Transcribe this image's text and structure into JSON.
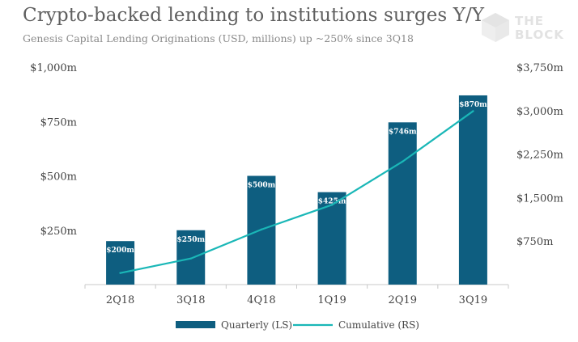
{
  "header": {
    "title": "Crypto-backed lending to institutions surges Y/Y",
    "subtitle": "Genesis Capital Lending Originations (USD, millions) up ~250% since 3Q18"
  },
  "logo": {
    "line1": "THE",
    "line2": "BLOCK",
    "icon": "cube-logo-icon"
  },
  "colors": {
    "bar": "#0e5e80",
    "line": "#1ab7b7",
    "axis": "#c8c8c8"
  },
  "chart_data": {
    "type": "bar",
    "title": "Crypto-backed lending to institutions surges Y/Y",
    "subtitle": "Genesis Capital Lending Originations (USD, millions) up ~250% since 3Q18",
    "categories": [
      "2Q18",
      "3Q18",
      "4Q18",
      "1Q19",
      "2Q19",
      "3Q19"
    ],
    "series": [
      {
        "name": "Quarterly (LS)",
        "type": "bar",
        "axis": "left",
        "values": [
          200,
          250,
          500,
          425,
          746,
          870
        ],
        "labels": [
          "$200m",
          "$250m",
          "$500m",
          "$425m",
          "$746m",
          "$870m"
        ]
      },
      {
        "name": "Cumulative (RS)",
        "type": "line",
        "axis": "right",
        "values": [
          200,
          450,
          950,
          1375,
          2121,
          2991
        ]
      }
    ],
    "left_axis": {
      "ylim": [
        0,
        1000
      ],
      "ticks": [
        250,
        500,
        750,
        1000
      ],
      "tick_labels": [
        "$250m",
        "$500m",
        "$750m",
        "$1,000m"
      ]
    },
    "right_axis": {
      "ylim": [
        0,
        3750
      ],
      "ticks": [
        750,
        1500,
        2250,
        3000,
        3750
      ],
      "tick_labels": [
        "$750m",
        "$1,500m",
        "$2,250m",
        "$3,000m",
        "$3,750m"
      ]
    },
    "legend": {
      "position": "bottom-center",
      "items": [
        "Quarterly (LS)",
        "Cumulative (RS)"
      ]
    },
    "grid": false
  }
}
